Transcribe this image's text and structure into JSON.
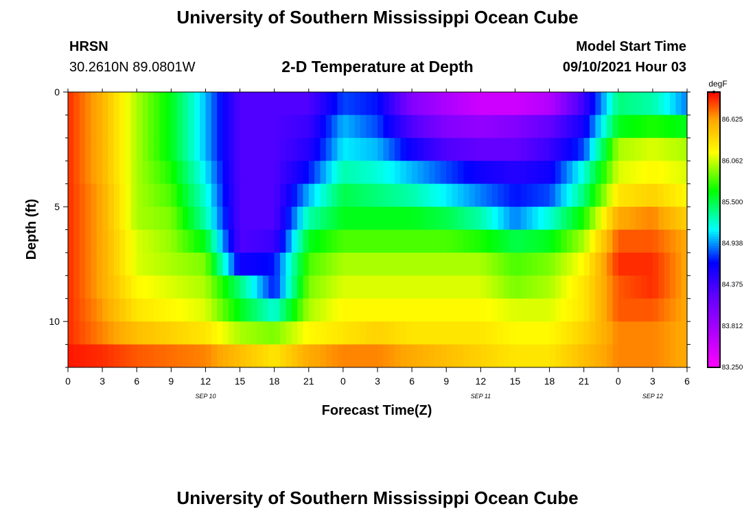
{
  "page": {
    "title": "University of Southern Mississippi Ocean Cube",
    "footer_title": "University of Southern Mississippi Ocean Cube",
    "station": "HRSN",
    "location": "30.2610N  89.0801W",
    "model_start_label": "Model Start Time",
    "model_start_value": "09/10/2021 Hour 03"
  },
  "chart_data": {
    "type": "heatmap",
    "title": "2-D Temperature at Depth",
    "xlabel": "Forecast Time(Z)",
    "ylabel": "Depth (ft)",
    "x_ticks": [
      "0",
      "3",
      "6",
      "9",
      "12",
      "15",
      "18",
      "21",
      "0",
      "3",
      "6",
      "9",
      "12",
      "15",
      "18",
      "21",
      "0",
      "3",
      "6"
    ],
    "x_hours_range": [
      0,
      54
    ],
    "date_labels": [
      {
        "text": "SEP 10",
        "hour": 12
      },
      {
        "text": "SEP 11",
        "hour": 36
      },
      {
        "text": "SEP 12",
        "hour": 51
      }
    ],
    "y_ticks": [
      0,
      5,
      10
    ],
    "ylim": [
      0,
      12
    ],
    "colorbar": {
      "unit": "degF",
      "min": 83.25,
      "max": 87.0,
      "tick_values": [
        "86.625",
        "86.062",
        "85.500",
        "84.938",
        "84.375",
        "83.812",
        "83.250"
      ]
    },
    "depth_layers_ft": [
      0.5,
      1.5,
      2.5,
      3.5,
      4.5,
      5.5,
      6.5,
      7.5,
      8.5,
      9.5,
      10.5,
      11.5
    ],
    "time_hours": [
      0,
      3,
      6,
      9,
      12,
      15,
      18,
      21,
      24,
      27,
      30,
      33,
      36,
      39,
      42,
      45,
      48,
      51,
      54
    ],
    "temperature_degF": [
      [
        86.9,
        86.55,
        86.0,
        85.6,
        85.0,
        84.3,
        84.3,
        84.3,
        84.8,
        84.7,
        84.0,
        83.75,
        83.55,
        83.55,
        83.7,
        84.4,
        85.4,
        85.3,
        84.9
      ],
      [
        86.9,
        86.55,
        86.0,
        85.6,
        85.0,
        84.3,
        84.3,
        84.4,
        85.0,
        84.8,
        84.3,
        84.0,
        83.9,
        84.0,
        84.2,
        84.6,
        85.6,
        85.7,
        85.6
      ],
      [
        86.9,
        86.55,
        86.0,
        85.6,
        85.0,
        84.3,
        84.3,
        84.5,
        85.1,
        85.0,
        84.6,
        84.3,
        84.2,
        84.2,
        84.4,
        84.8,
        86.0,
        86.1,
        86.0
      ],
      [
        86.9,
        86.55,
        86.0,
        85.7,
        85.1,
        84.3,
        84.3,
        84.7,
        85.3,
        85.2,
        85.0,
        84.8,
        84.6,
        84.5,
        84.6,
        85.2,
        86.1,
        86.2,
        86.1
      ],
      [
        86.9,
        86.6,
        86.0,
        85.8,
        85.2,
        84.3,
        84.3,
        85.0,
        85.5,
        85.4,
        85.3,
        85.1,
        84.9,
        84.7,
        84.8,
        85.4,
        86.3,
        86.4,
        86.2
      ],
      [
        86.9,
        86.6,
        86.0,
        85.9,
        85.3,
        84.3,
        84.3,
        85.3,
        85.6,
        85.6,
        85.6,
        85.5,
        85.3,
        84.9,
        85.2,
        85.7,
        86.6,
        86.7,
        86.4
      ],
      [
        86.9,
        86.6,
        86.1,
        85.95,
        85.6,
        84.3,
        84.4,
        85.6,
        85.8,
        85.8,
        85.8,
        85.8,
        85.7,
        85.5,
        85.6,
        86.0,
        86.8,
        86.8,
        86.6
      ],
      [
        86.9,
        86.6,
        86.1,
        86.0,
        85.9,
        84.6,
        84.7,
        85.8,
        86.0,
        86.0,
        86.0,
        86.0,
        86.0,
        85.8,
        85.9,
        86.2,
        86.9,
        86.9,
        86.6
      ],
      [
        86.9,
        86.6,
        86.2,
        86.1,
        86.0,
        85.4,
        84.7,
        85.9,
        86.1,
        86.1,
        86.1,
        86.1,
        86.1,
        85.9,
        86.0,
        86.3,
        86.8,
        86.9,
        86.6
      ],
      [
        86.9,
        86.65,
        86.3,
        86.2,
        86.1,
        85.6,
        85.2,
        86.0,
        86.2,
        86.2,
        86.2,
        86.2,
        86.2,
        86.1,
        86.1,
        86.3,
        86.8,
        86.8,
        86.6
      ],
      [
        86.9,
        86.7,
        86.5,
        86.4,
        86.3,
        86.0,
        85.9,
        86.2,
        86.3,
        86.4,
        86.3,
        86.3,
        86.3,
        86.2,
        86.2,
        86.4,
        86.7,
        86.7,
        86.6
      ],
      [
        86.95,
        86.9,
        86.8,
        86.75,
        86.7,
        86.5,
        86.3,
        86.6,
        86.7,
        86.7,
        86.6,
        86.5,
        86.4,
        86.3,
        86.3,
        86.5,
        86.7,
        86.7,
        86.6
      ]
    ]
  }
}
